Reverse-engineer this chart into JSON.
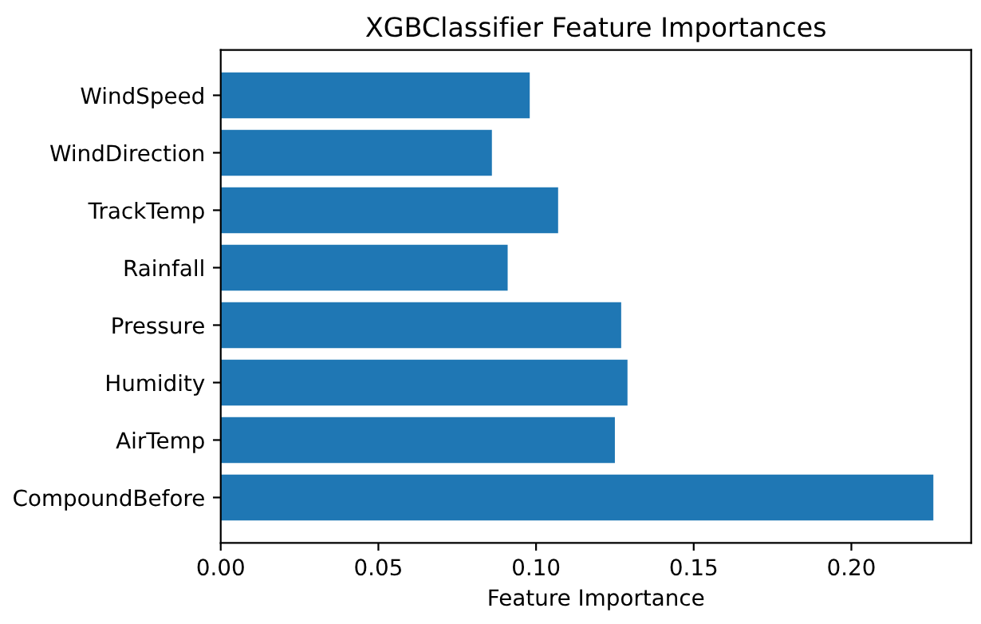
{
  "chart_data": {
    "type": "bar",
    "orientation": "horizontal",
    "title": "XGBClassifier Feature Importances",
    "xlabel": "Feature Importance",
    "categories": [
      "WindSpeed",
      "WindDirection",
      "TrackTemp",
      "Rainfall",
      "Pressure",
      "Humidity",
      "AirTemp",
      "CompoundBefore"
    ],
    "values": [
      0.098,
      0.086,
      0.107,
      0.091,
      0.127,
      0.129,
      0.125,
      0.226
    ],
    "color": "#1f77b4",
    "xlim": [
      0,
      0.238
    ],
    "xticks": [
      {
        "value": 0,
        "label": "0.00"
      },
      0.05,
      {
        "value": 0.1,
        "label": "0.10"
      },
      0.15,
      {
        "value": 0.2,
        "label": "0.20"
      }
    ],
    "grid": false
  }
}
